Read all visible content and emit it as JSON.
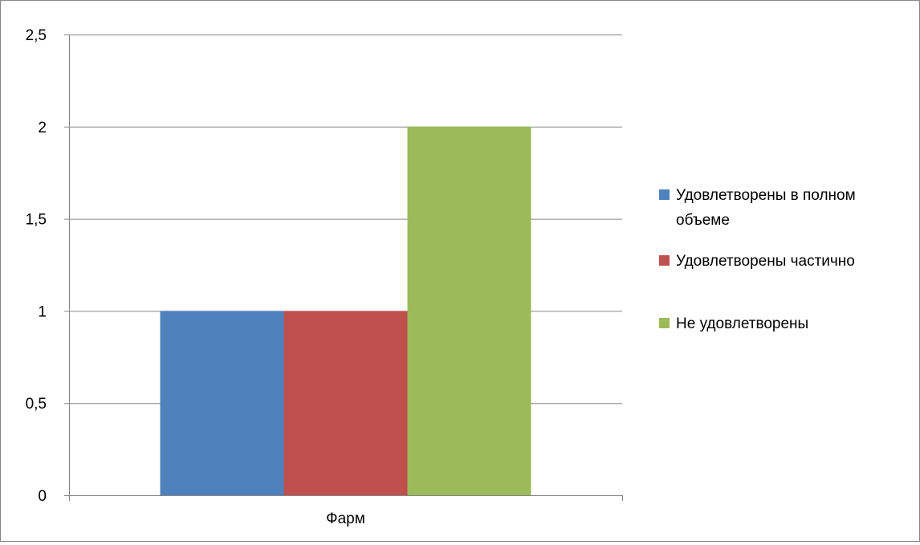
{
  "chart_data": {
    "type": "bar",
    "categories": [
      "Фарм"
    ],
    "series": [
      {
        "name": "Удовлетворены в полном объеме",
        "name_lines": [
          "Удовлетворены в полном",
          "объеме"
        ],
        "values": [
          1
        ],
        "color": "#4F81BD"
      },
      {
        "name": "Удовлетворены частично",
        "name_lines": [
          "Удовлетворены частично"
        ],
        "values": [
          1
        ],
        "color": "#C0504D"
      },
      {
        "name": "Не удовлетворены",
        "name_lines": [
          "Не удовлетворены"
        ],
        "values": [
          2
        ],
        "color": "#9BBB59"
      }
    ],
    "ylim": [
      0,
      2.5
    ],
    "yticks": [
      0,
      0.5,
      1,
      1.5,
      2,
      2.5
    ],
    "ytick_labels": [
      "0",
      "0,5",
      "1",
      "1,5",
      "2",
      "2,5"
    ],
    "grid": true,
    "legend_position": "right",
    "gridline_color": "#868686"
  }
}
